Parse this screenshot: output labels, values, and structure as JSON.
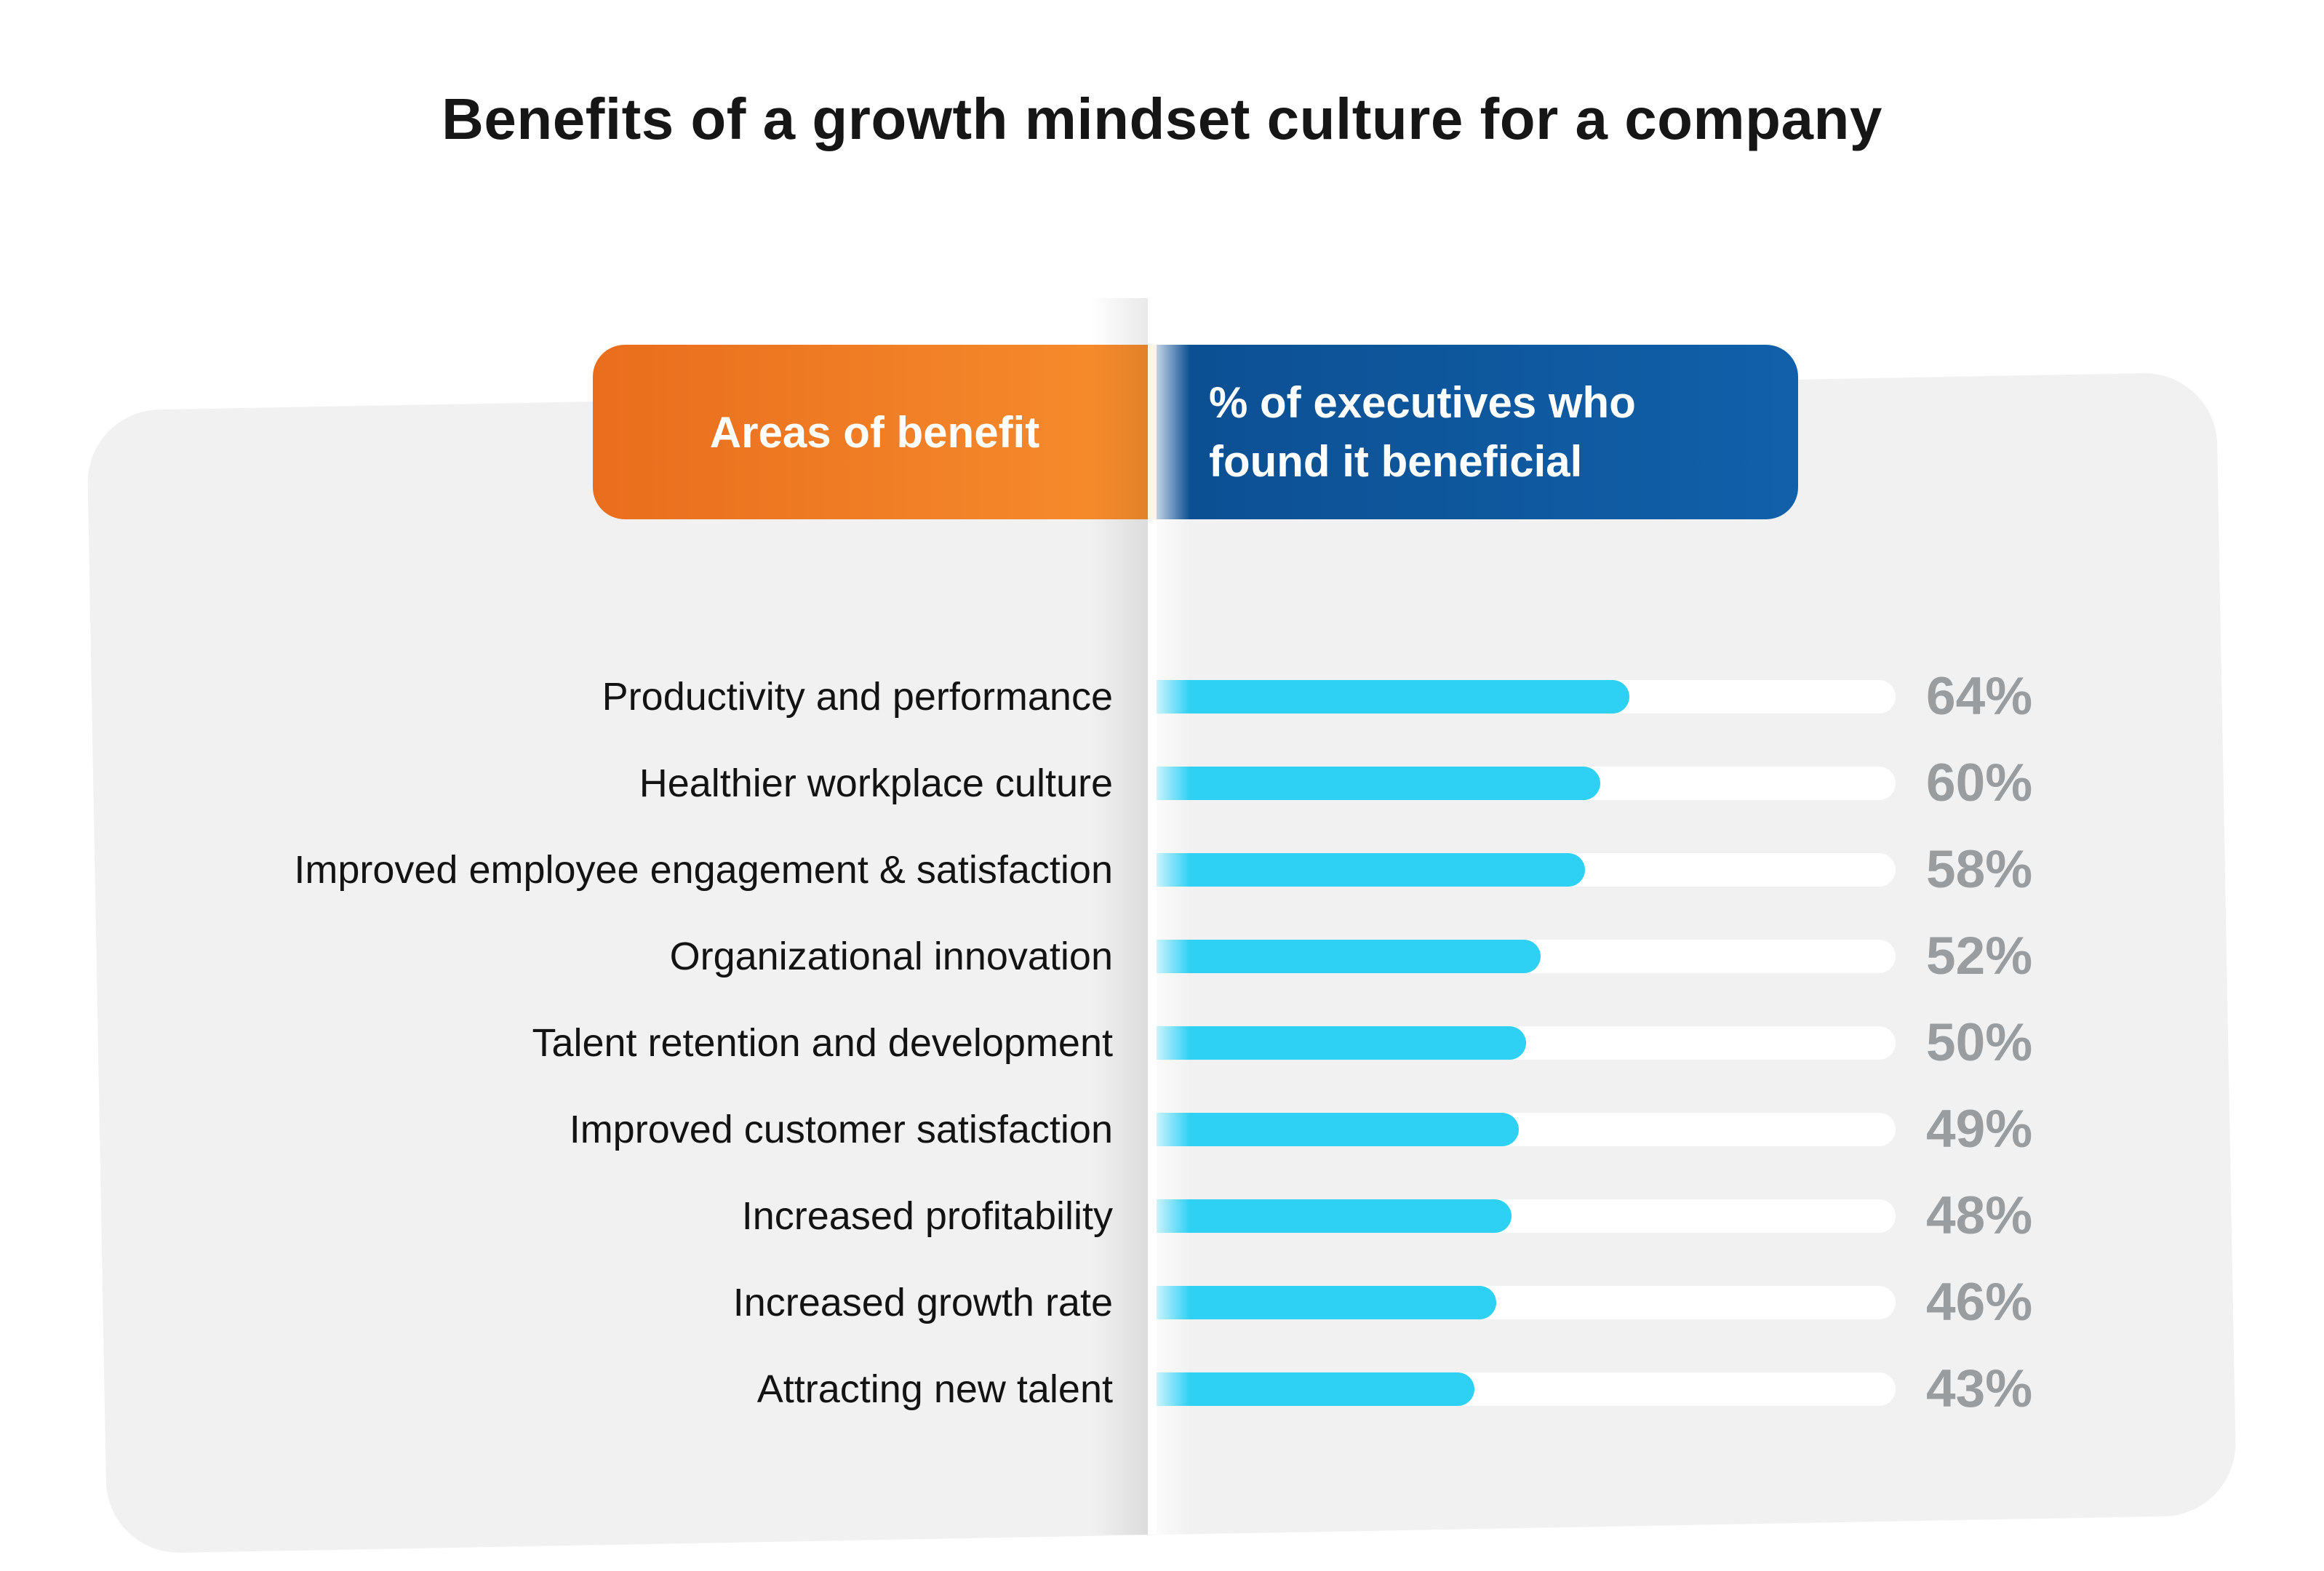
{
  "title": "Benefits of a growth mindset culture for a company",
  "header": {
    "areas_label": "Areas of benefit",
    "executives_label": "% of executives who\nfound it beneficial"
  },
  "colors": {
    "orange_start": "#e96d1d",
    "orange_end": "#f78e2d",
    "blue_start": "#0c4f92",
    "blue_end": "#1160a9",
    "bar_fill": "#2ed0f4",
    "bar_track": "#ffffff",
    "card_bg": "#f1f1f1",
    "percent_text": "#9a9da0",
    "label_text": "#131313"
  },
  "chart_data": {
    "type": "bar",
    "orientation": "horizontal",
    "title": "Benefits of a growth mindset culture for a company",
    "categories": [
      "Productivity and performance",
      "Healthier workplace culture",
      "Improved employee engagement & satisfaction",
      "Organizational innovation",
      "Talent retention and development",
      "Improved customer satisfaction",
      "Increased profitability",
      "Increased growth rate",
      "Attracting new talent"
    ],
    "values": [
      64,
      60,
      58,
      52,
      50,
      49,
      48,
      46,
      43
    ],
    "value_suffix": "%",
    "xlim": [
      0,
      100
    ],
    "legend": "none",
    "grid": false
  }
}
